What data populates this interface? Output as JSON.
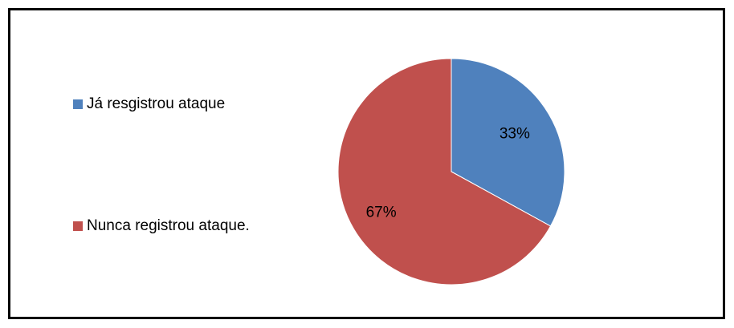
{
  "chart_data": {
    "type": "pie",
    "title": "",
    "categories": [
      "Já resgistrou ataque",
      "Nunca registrou ataque."
    ],
    "values": [
      33,
      67
    ],
    "data_labels": [
      "33%",
      "67%"
    ],
    "colors": [
      "#4F81BD",
      "#C0504D"
    ],
    "legend_position": "left",
    "start_angle": "top",
    "direction": "clockwise"
  }
}
